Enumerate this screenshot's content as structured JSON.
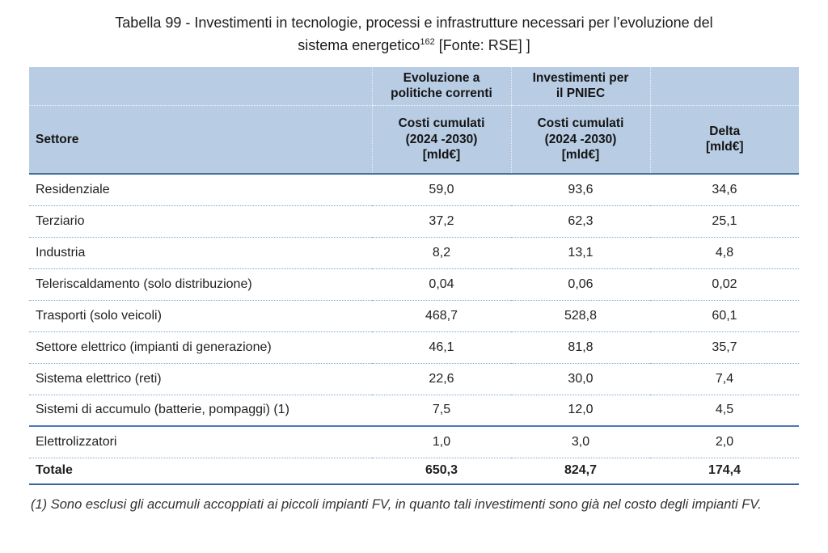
{
  "caption": {
    "line1": "Tabella 99 - Investimenti in tecnologie, processi e infrastrutture necessari per l’evoluzione del",
    "line2_pre": "sistema energetico",
    "footnote_ref": "162",
    "line2_post": " [Fonte: RSE] ]"
  },
  "table": {
    "header_groups": {
      "evoluzione": "Evoluzione a\npolitiche correnti",
      "pniec": "Investimenti per\nil PNIEC"
    },
    "headers": [
      "Settore",
      "Costi cumulati\n(2024 -2030)\n[mld€]",
      "Costi cumulati\n(2024 -2030)\n[mld€]",
      "Delta\n[mld€]"
    ],
    "rows": [
      [
        "Residenziale",
        "59,0",
        "93,6",
        "34,6"
      ],
      [
        "Terziario",
        "37,2",
        "62,3",
        "25,1"
      ],
      [
        "Industria",
        "8,2",
        "13,1",
        "4,8"
      ],
      [
        "Teleriscaldamento (solo distribuzione)",
        "0,04",
        "0,06",
        "0,02"
      ],
      [
        "Trasporti (solo veicoli)",
        "468,7",
        "528,8",
        "60,1"
      ],
      [
        "Settore elettrico (impianti di generazione)",
        "46,1",
        "81,8",
        "35,7"
      ],
      [
        "Sistema elettrico (reti)",
        "22,6",
        "30,0",
        "7,4"
      ],
      [
        "Sistemi di accumulo (batterie, pompaggi) (1)",
        "7,5",
        "12,0",
        "4,5"
      ],
      [
        "Elettrolizzatori",
        "1,0",
        "3,0",
        "2,0"
      ]
    ],
    "total_row": [
      "Totale",
      "650,3",
      "824,7",
      "174,4"
    ]
  },
  "footnote": "(1) Sono esclusi gli accumuli accoppiati ai piccoli impianti FV, in quanto tali investimenti sono già nel costo degli impianti FV.",
  "colors": {
    "header_bg": "#b8cce4",
    "solid_border": "#41719c",
    "dotted_border": "#7fa3cc"
  }
}
